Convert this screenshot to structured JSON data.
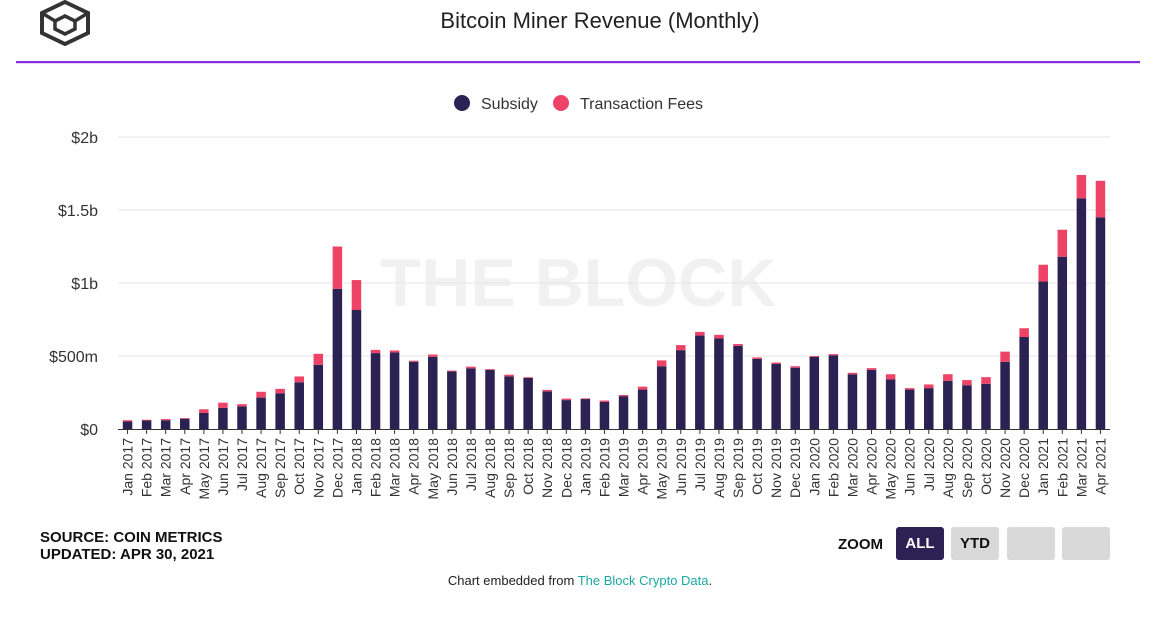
{
  "header": {
    "title": "Bitcoin Miner Revenue (Monthly)"
  },
  "source": {
    "line1": "SOURCE: COIN METRICS",
    "line2": "UPDATED: APR 30, 2021"
  },
  "zoom": {
    "label": "ZOOM",
    "buttons": [
      "ALL",
      "YTD"
    ]
  },
  "footer": {
    "prefix": "Chart embedded from ",
    "link": "The Block Crypto Data",
    "suffix": "."
  },
  "watermark": "THE BLOCK",
  "colors": {
    "subsidy": "#2b2152",
    "fees": "#ee4266",
    "accent": "#8a2be2",
    "link": "#19a7a0"
  },
  "chart_data": {
    "type": "bar",
    "stacked": true,
    "title": "Bitcoin Miner Revenue (Monthly)",
    "ylim": [
      0,
      2000000000
    ],
    "yticks": [
      "$0",
      "$500m",
      "$1b",
      "$1.5b",
      "$2b"
    ],
    "legend_position": "top-center",
    "grid": true,
    "categories": [
      "Jan 2017",
      "Feb 2017",
      "Mar 2017",
      "Apr 2017",
      "May 2017",
      "Jun 2017",
      "Jul 2017",
      "Aug 2017",
      "Sep 2017",
      "Oct 2017",
      "Nov 2017",
      "Dec 2017",
      "Jan 2018",
      "Feb 2018",
      "Mar 2018",
      "Apr 2018",
      "May 2018",
      "Jun 2018",
      "Jul 2018",
      "Aug 2018",
      "Sep 2018",
      "Oct 2018",
      "Nov 2018",
      "Dec 2018",
      "Jan 2019",
      "Feb 2019",
      "Mar 2019",
      "Apr 2019",
      "May 2019",
      "Jun 2019",
      "Jul 2019",
      "Aug 2019",
      "Sep 2019",
      "Oct 2019",
      "Nov 2019",
      "Dec 2019",
      "Jan 2020",
      "Feb 2020",
      "Mar 2020",
      "Apr 2020",
      "May 2020",
      "Jun 2020",
      "Jul 2020",
      "Aug 2020",
      "Sep 2020",
      "Oct 2020",
      "Nov 2020",
      "Dec 2020",
      "Jan 2021",
      "Feb 2021",
      "Mar 2021",
      "Apr 2021"
    ],
    "series": [
      {
        "name": "Subsidy",
        "values": [
          52000000,
          58000000,
          60000000,
          70000000,
          110000000,
          145000000,
          155000000,
          215000000,
          245000000,
          320000000,
          440000000,
          960000000,
          815000000,
          520000000,
          525000000,
          460000000,
          495000000,
          395000000,
          415000000,
          405000000,
          360000000,
          350000000,
          258000000,
          198000000,
          205000000,
          185000000,
          225000000,
          270000000,
          430000000,
          540000000,
          640000000,
          620000000,
          570000000,
          480000000,
          445000000,
          420000000,
          495000000,
          505000000,
          375000000,
          405000000,
          340000000,
          270000000,
          280000000,
          330000000,
          300000000,
          310000000,
          460000000,
          630000000,
          1010000000,
          1180000000,
          1580000000,
          1450000000
        ]
      },
      {
        "name": "Transaction Fees",
        "values": [
          8000000,
          5000000,
          8000000,
          5000000,
          25000000,
          35000000,
          15000000,
          40000000,
          30000000,
          40000000,
          75000000,
          290000000,
          205000000,
          22000000,
          13000000,
          8000000,
          15000000,
          5000000,
          12000000,
          5000000,
          12000000,
          5000000,
          10000000,
          10000000,
          5000000,
          10000000,
          8000000,
          20000000,
          40000000,
          35000000,
          25000000,
          25000000,
          12000000,
          10000000,
          10000000,
          10000000,
          5000000,
          8000000,
          10000000,
          12000000,
          35000000,
          10000000,
          25000000,
          45000000,
          35000000,
          45000000,
          70000000,
          60000000,
          115000000,
          185000000,
          160000000,
          250000000
        ]
      }
    ]
  }
}
